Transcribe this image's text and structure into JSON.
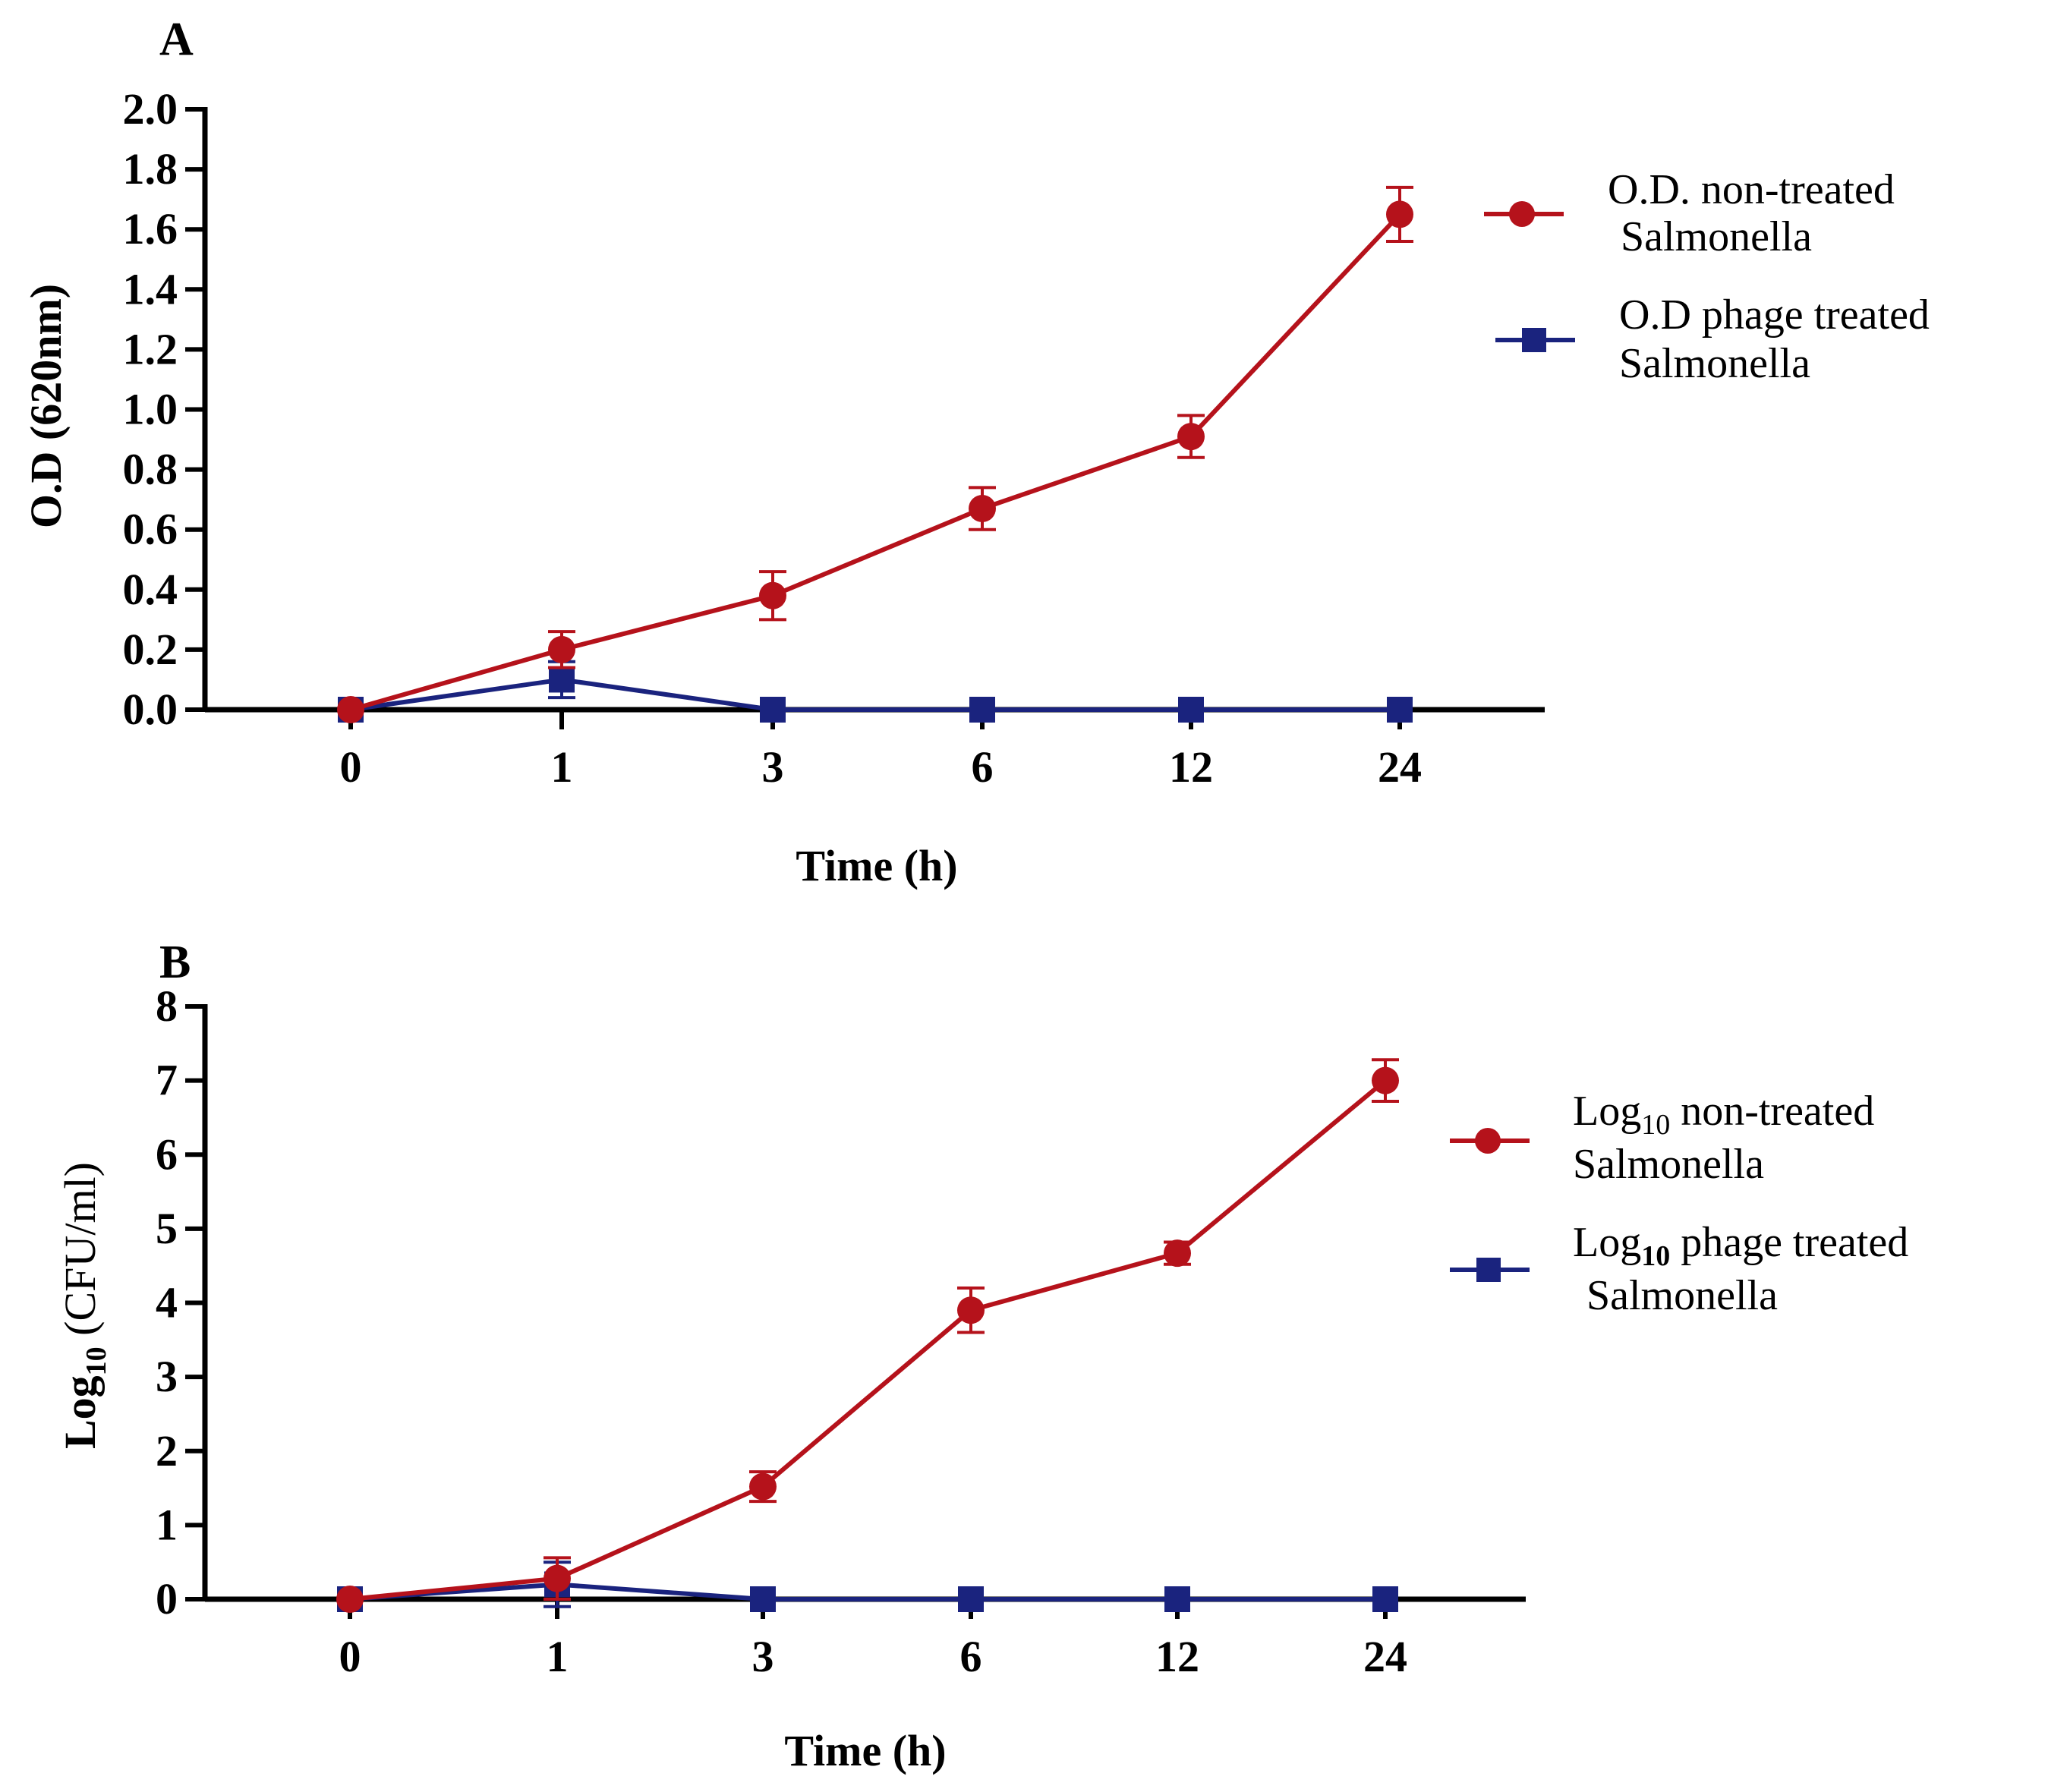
{
  "chart_data": [
    {
      "type": "line",
      "panel": "A",
      "categories": [
        "0",
        "1",
        "3",
        "6",
        "12",
        "24"
      ],
      "xlabel": "Time (h)",
      "ylabel": "O.D (620nm)",
      "ylim": [
        0,
        2.0
      ],
      "yticks": [
        "0.0",
        "0.2",
        "0.4",
        "0.6",
        "0.8",
        "1.0",
        "1.2",
        "1.4",
        "1.6",
        "1.8",
        "2.0"
      ],
      "ytick_values": [
        0,
        0.2,
        0.4,
        0.6,
        0.8,
        1.0,
        1.2,
        1.4,
        1.6,
        1.8,
        2.0
      ],
      "legend_position": "top-right",
      "series": [
        {
          "name_line1": "O.D. non-treated",
          "name_line2": "Salmonella",
          "marker": "circle",
          "color": "#b5121b",
          "values": [
            0,
            0.2,
            0.38,
            0.67,
            0.91,
            1.65
          ],
          "errors": [
            0,
            0.06,
            0.08,
            0.07,
            0.07,
            0.09
          ]
        },
        {
          "name_line1": "O.D phage treated",
          "name_line2": "Salmonella",
          "marker": "square",
          "color": "#1a237e",
          "values": [
            0,
            0.1,
            0,
            0,
            0,
            0
          ],
          "errors": [
            0,
            0.06,
            0,
            0,
            0,
            0
          ]
        }
      ]
    },
    {
      "type": "line",
      "panel": "B",
      "categories": [
        "0",
        "1",
        "3",
        "6",
        "12",
        "24"
      ],
      "xlabel": "Time (h)",
      "ylabel_main": "Log",
      "ylabel_sub": "10",
      "ylabel_rest": " (CFU/ml)",
      "ylim": [
        0,
        8
      ],
      "yticks": [
        "0",
        "1",
        "2",
        "3",
        "4",
        "5",
        "6",
        "7",
        "8"
      ],
      "ytick_values": [
        0,
        1,
        2,
        3,
        4,
        5,
        6,
        7,
        8
      ],
      "legend_position": "top-right",
      "series": [
        {
          "name_main": "Log",
          "name_sub": "10",
          "name_rest": " non-treated",
          "name_line2": "Salmonella",
          "marker": "circle",
          "color": "#b5121b",
          "values": [
            0,
            0.28,
            1.52,
            3.9,
            4.67,
            7.0
          ],
          "errors": [
            0,
            0.28,
            0.2,
            0.3,
            0.15,
            0.28
          ]
        },
        {
          "name_main": "Log",
          "name_sub": "10",
          "name_rest": " phage treated",
          "name_line2": "Salmonella",
          "marker": "square",
          "color": "#1a237e",
          "values": [
            0,
            0.2,
            0,
            0,
            0,
            0
          ],
          "errors": [
            0,
            0.3,
            0,
            0,
            0,
            0
          ]
        }
      ]
    }
  ]
}
